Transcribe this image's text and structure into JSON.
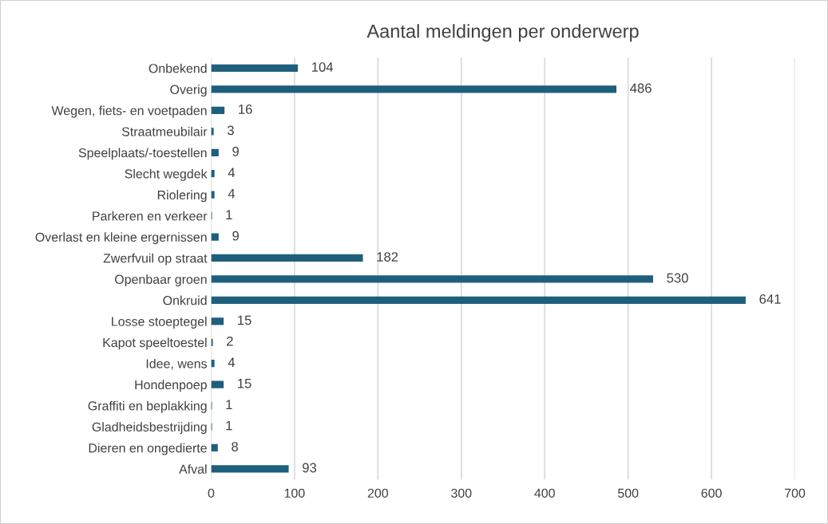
{
  "chart_data": {
    "type": "bar",
    "orientation": "horizontal",
    "title": "Aantal meldingen per onderwerp",
    "categories": [
      "Onbekend",
      "Overig",
      "Wegen, fiets- en voetpaden",
      "Straatmeubilair",
      "Speelplaats/-toestellen",
      "Slecht wegdek",
      "Riolering",
      "Parkeren en verkeer",
      "Overlast en kleine ergernissen",
      "Zwerfvuil op straat",
      "Openbaar groen",
      "Onkruid",
      "Losse stoeptegel",
      "Kapot speeltoestel",
      "Idee, wens",
      "Hondenpoep",
      "Graffiti en beplakking",
      "Gladheidsbestrijding",
      "Dieren en ongedierte",
      "Afval"
    ],
    "values": [
      104,
      486,
      16,
      3,
      9,
      4,
      4,
      1,
      9,
      182,
      530,
      641,
      15,
      2,
      4,
      15,
      1,
      1,
      8,
      93
    ],
    "color": "#1f5f7e",
    "xlim": [
      0,
      700
    ],
    "xticks": [
      0,
      100,
      200,
      300,
      400,
      500,
      600,
      700
    ],
    "grid": "x",
    "data_labels": true
  }
}
